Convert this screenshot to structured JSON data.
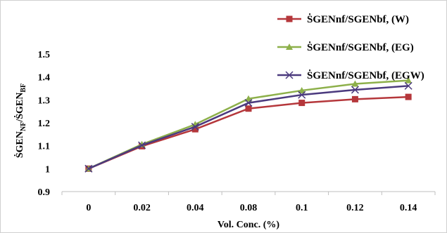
{
  "chart_data": {
    "type": "line",
    "categories": [
      "0",
      "0.02",
      "0.04",
      "0.08",
      "0.1",
      "0.12",
      "0.14"
    ],
    "xlabel": "Vol. Conc. (%)",
    "ylabel": {
      "main1": "ṠGEN",
      "sub1": "NF",
      "main2": "/ṠGEN",
      "sub2": "BF"
    },
    "ylim": [
      0.9,
      1.5
    ],
    "yticks": [
      "0.9",
      "1",
      "1.1",
      "1.2",
      "1.3",
      "1.4",
      "1.5"
    ],
    "grid": false,
    "legend_placement": "top-right",
    "series": [
      {
        "name": "ṠGENnf/SGENbf, (W)",
        "color": "#b5373b",
        "marker": "square",
        "values": [
          1.0,
          1.098,
          1.172,
          1.262,
          1.287,
          1.303,
          1.313
        ]
      },
      {
        "name": "ṠGENnf/SGENbf, (EG)",
        "color": "#8db04a",
        "marker": "triangle",
        "values": [
          1.0,
          1.106,
          1.193,
          1.305,
          1.341,
          1.37,
          1.385
        ]
      },
      {
        "name": "ṠGENnf/SGENbf, (EGW)",
        "color": "#4b3a7e",
        "marker": "x",
        "values": [
          1.0,
          1.102,
          1.183,
          1.287,
          1.322,
          1.344,
          1.361
        ]
      }
    ]
  }
}
